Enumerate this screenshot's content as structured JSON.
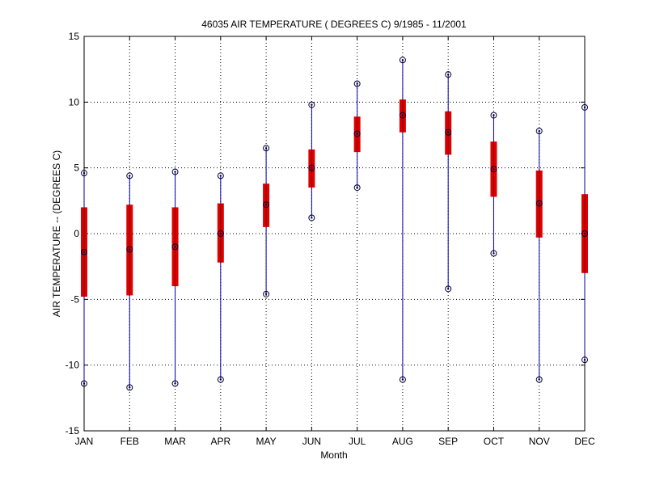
{
  "chart_data": {
    "type": "box",
    "title": "46035  AIR TEMPERATURE ( DEGREES C) 9/1985 - 11/2001",
    "xlabel": "Month",
    "ylabel": "AIR TEMPERATURE -- (DEGREES C)",
    "ylim": [
      -15,
      15
    ],
    "yticks": [
      "-15",
      "-10",
      "-5",
      "0",
      "5",
      "10",
      "15"
    ],
    "grid": true,
    "categories": [
      "JAN",
      "FEB",
      "MAR",
      "APR",
      "MAY",
      "JUN",
      "JUL",
      "AUG",
      "SEP",
      "OCT",
      "NOV",
      "DEC"
    ],
    "series": [
      {
        "min": [
          -11.4,
          -11.7,
          -11.4,
          -11.1,
          -4.6,
          1.2,
          3.5,
          -11.1,
          -4.2,
          -1.5,
          -11.1,
          -9.6
        ],
        "q1": [
          -4.8,
          -4.7,
          -4.0,
          -2.2,
          0.5,
          3.5,
          6.2,
          7.7,
          6.0,
          2.8,
          -0.3,
          -3.0
        ],
        "median": [
          -1.4,
          -1.2,
          -1.0,
          0.0,
          2.2,
          5.0,
          7.6,
          9.0,
          7.7,
          4.9,
          2.3,
          0.0
        ],
        "q3": [
          2.0,
          2.2,
          2.0,
          2.3,
          3.8,
          6.4,
          8.9,
          10.2,
          9.3,
          7.0,
          4.8,
          3.0
        ],
        "max": [
          4.6,
          4.4,
          4.7,
          4.4,
          6.5,
          9.8,
          11.4,
          13.2,
          12.1,
          9.0,
          7.8,
          9.6
        ]
      }
    ],
    "colors": {
      "whisker": "#0000aa",
      "box": "#dd0000",
      "marker": "#000033",
      "grid": "#000000"
    }
  }
}
